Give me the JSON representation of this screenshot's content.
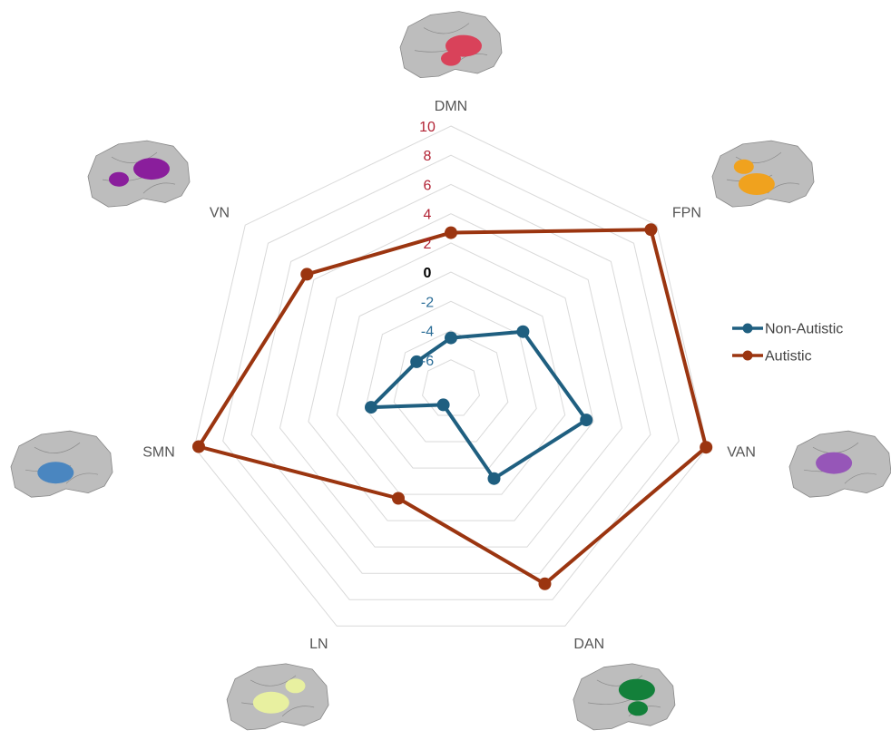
{
  "chart_data": {
    "type": "radar",
    "categories": [
      "DMN",
      "FPN",
      "VAN",
      "DAN",
      "LN",
      "SMN",
      "VN"
    ],
    "rlim": [
      -8,
      10
    ],
    "ticks": [
      "10",
      "8",
      "6",
      "4",
      "2",
      "0",
      "-2",
      "-4",
      "-6"
    ],
    "tick_values": [
      10,
      8,
      6,
      4,
      2,
      0,
      -2,
      -4,
      -6
    ],
    "series": [
      {
        "name": "Non-Autistic",
        "color": "#1f5f80",
        "values": [
          -4.5,
          -1.7,
          1.5,
          -1.2,
          -6.8,
          -2.4,
          -5.0
        ]
      },
      {
        "name": "Autistic",
        "color": "#9b3510",
        "values": [
          2.7,
          9.5,
          9.9,
          6.8,
          0.3,
          9.7,
          4.6
        ]
      }
    ],
    "legend": "right",
    "grid": true,
    "network_colors": {
      "DMN": "#d9425a",
      "FPN": "#f0a21e",
      "VAN": "#9656b8",
      "DAN": "#13803a",
      "LN": "#e8f0a0",
      "SMN": "#4a86c0",
      "VN": "#8a1e9c"
    }
  },
  "colors": {
    "positive_tick": "#b22234",
    "negative_tick": "#2c6e98",
    "zero_tick": "#000000",
    "grid": "#d9d9d9",
    "brain": "#bdbdbd"
  }
}
